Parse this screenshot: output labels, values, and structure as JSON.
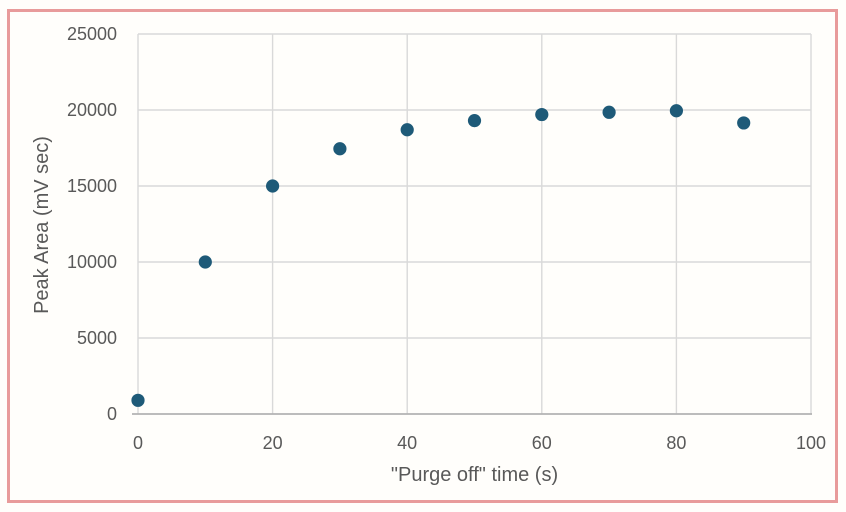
{
  "figure": {
    "background": "#fffefb",
    "border_color": "#e89b9b"
  },
  "chart_data": {
    "type": "scatter",
    "title": "",
    "xlabel": "\"Purge off\" time (s)",
    "ylabel": "Peak Area (mV sec)",
    "x": [
      0,
      10,
      20,
      30,
      40,
      50,
      60,
      70,
      80,
      90
    ],
    "y": [
      900,
      10000,
      15000,
      17450,
      18700,
      19300,
      19700,
      19850,
      19950,
      19150
    ],
    "xlim": [
      0,
      100
    ],
    "ylim": [
      0,
      25000
    ],
    "xticks": [
      0,
      20,
      40,
      60,
      80,
      100
    ],
    "yticks": [
      0,
      5000,
      10000,
      15000,
      20000,
      25000
    ],
    "grid": true,
    "legend": "none",
    "marker_color": "#1e5a78",
    "gridline_color": "#d9d9d9",
    "axis_line_color": "#b3b3b3",
    "text_color": "#595959"
  }
}
